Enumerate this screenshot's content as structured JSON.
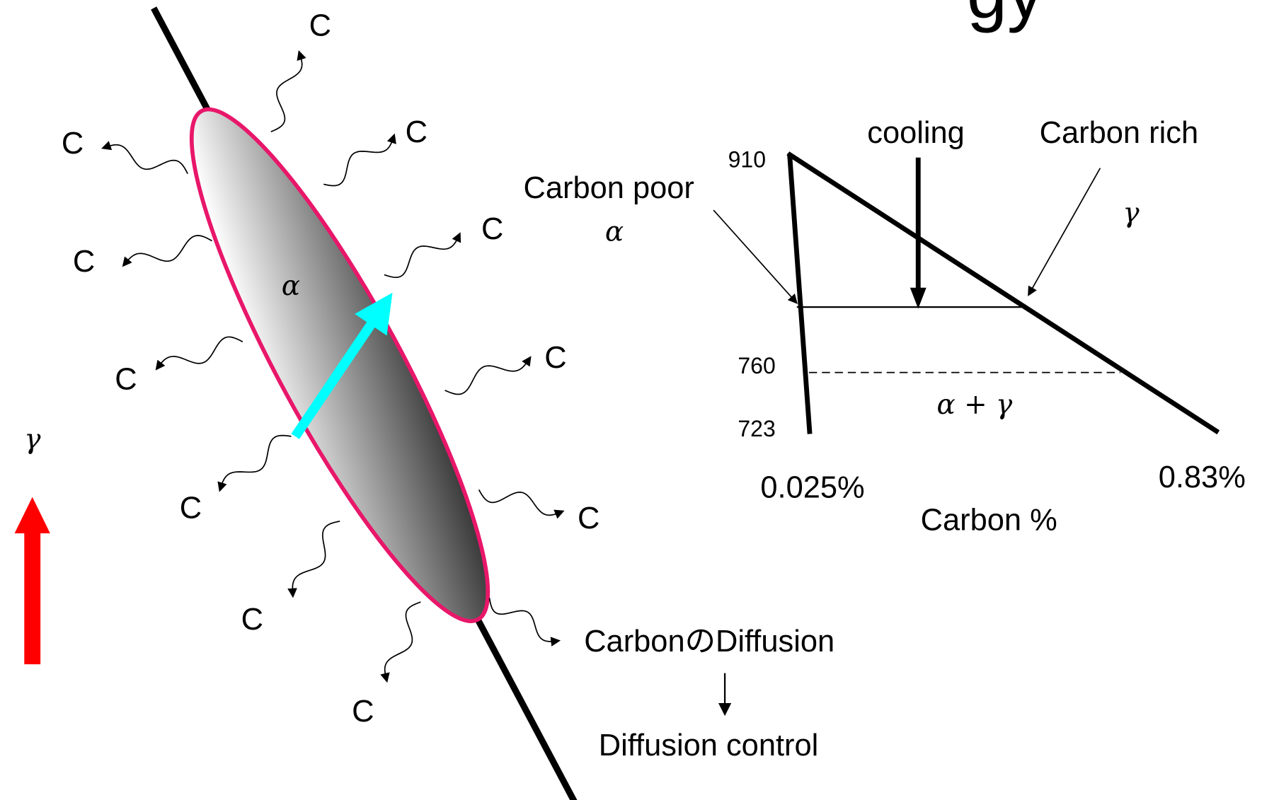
{
  "title_fragment": "gy",
  "particle": {
    "phase_label": "α",
    "matrix_label": "γ",
    "carbon_labels": [
      "C",
      "C",
      "C",
      "C",
      "C",
      "C",
      "C",
      "C",
      "C",
      "C",
      "C"
    ]
  },
  "diffusion_note": {
    "line1": "CarbonのDiffusion",
    "line2": "Diffusion control"
  },
  "phase_diagram": {
    "cooling": "cooling",
    "carbon_rich": "Carbon rich",
    "carbon_poor": "Carbon poor",
    "alpha": "α",
    "gamma": "γ",
    "two_phase": "α + γ",
    "temps": [
      "910",
      "760",
      "723"
    ],
    "left_comp": "0.025%",
    "right_comp": "0.83%",
    "x_label": "Carbon %"
  }
}
